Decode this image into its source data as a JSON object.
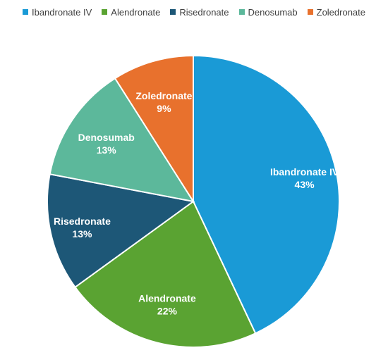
{
  "chart_data": {
    "type": "pie",
    "title": "",
    "legend_position": "top",
    "slices": [
      {
        "name": "Ibandronate IV",
        "value": 43,
        "value_label": "43%",
        "color": "#1a9ad6"
      },
      {
        "name": "Alendronate",
        "value": 22,
        "value_label": "22%",
        "color": "#5aa332"
      },
      {
        "name": "Risedronate",
        "value": 13,
        "value_label": "13%",
        "color": "#1d5777"
      },
      {
        "name": "Denosumab",
        "value": 13,
        "value_label": "13%",
        "color": "#5cb89b"
      },
      {
        "name": "Zoledronate",
        "value": 9,
        "value_label": "9%",
        "color": "#e8712d"
      }
    ]
  }
}
